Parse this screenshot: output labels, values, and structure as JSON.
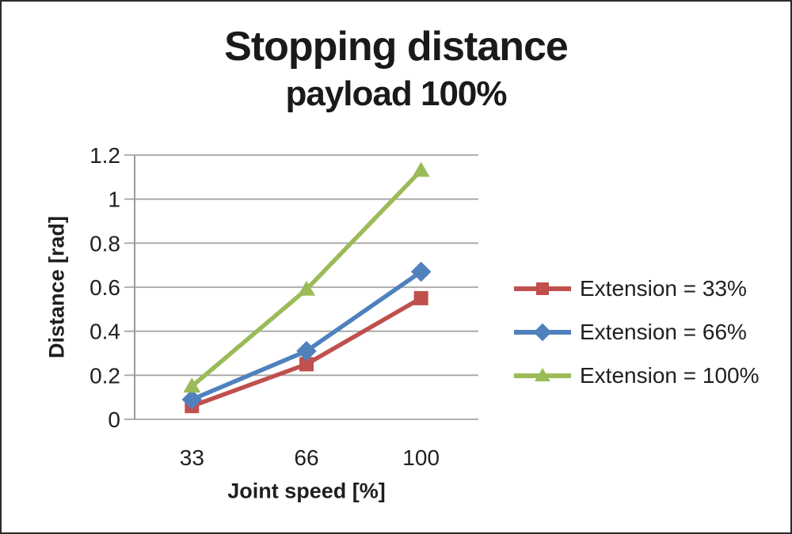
{
  "title": "Stopping distance",
  "subtitle": "payload 100%",
  "chart_data": {
    "type": "line",
    "categories": [
      "33",
      "66",
      "100"
    ],
    "series": [
      {
        "name": "Extension = 33%",
        "marker": "square",
        "color": "#C0504D",
        "values": [
          0.06,
          0.25,
          0.55
        ]
      },
      {
        "name": "Extension = 66%",
        "marker": "diamond",
        "color": "#4F81BD",
        "values": [
          0.09,
          0.31,
          0.67
        ]
      },
      {
        "name": "Extension = 100%",
        "marker": "triangle",
        "color": "#9BBB59",
        "values": [
          0.15,
          0.59,
          1.13
        ]
      }
    ],
    "xlabel": "Joint speed [%]",
    "ylabel": "Distance [rad]",
    "ylim": [
      0,
      1.2
    ],
    "ytick_step": 0.2,
    "yticks": [
      "0",
      "0.2",
      "0.4",
      "0.6",
      "0.8",
      "1",
      "1.2"
    ],
    "grid": "horizontal",
    "legend_position": "right",
    "colors": {
      "gridline": "#a6a6a6",
      "axis": "#9a9a9a",
      "text": "#1f1f1f"
    }
  }
}
